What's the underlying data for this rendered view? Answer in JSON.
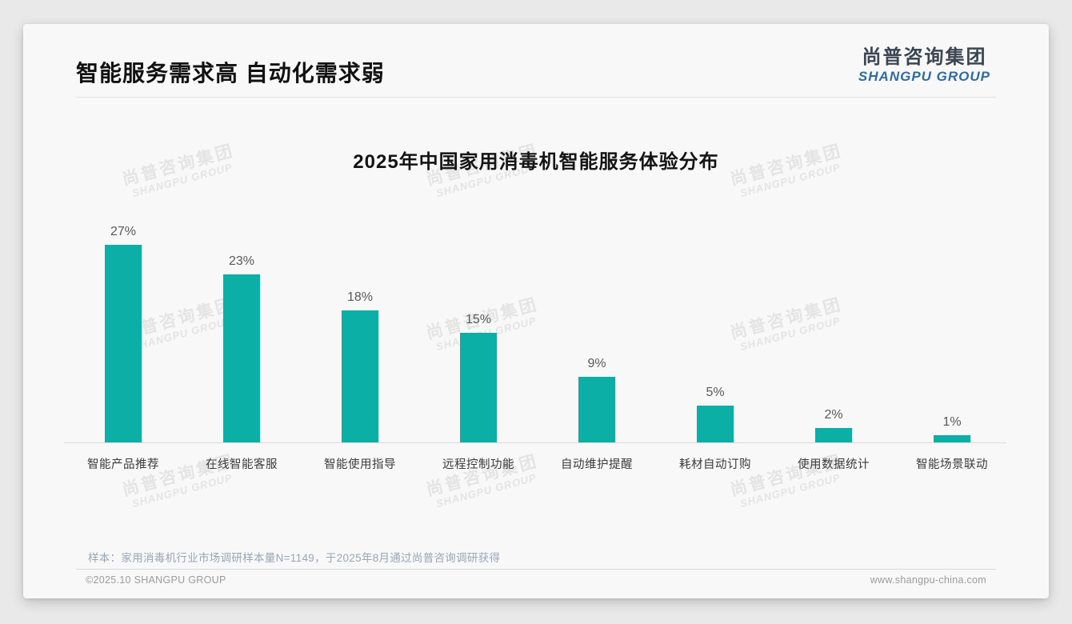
{
  "header": {
    "title": "智能服务需求高 自动化需求弱",
    "logo_cn": "尚普咨询集团",
    "logo_en": "SHANGPU GROUP"
  },
  "watermark": {
    "cn": "尚普咨询集团",
    "en": "SHANGPU GROUP"
  },
  "chart_data": {
    "type": "bar",
    "title": "2025年中国家用消毒机智能服务体验分布",
    "categories": [
      "智能产品推荐",
      "在线智能客服",
      "智能使用指导",
      "远程控制功能",
      "自动维护提醒",
      "耗材自动订购",
      "使用数据统计",
      "智能场景联动"
    ],
    "values": [
      27,
      23,
      18,
      15,
      9,
      5,
      2,
      1
    ],
    "data_labels": [
      "27%",
      "23%",
      "18%",
      "15%",
      "9%",
      "5%",
      "2%",
      "1%"
    ],
    "unit": "%",
    "xlabel": "",
    "ylabel": "",
    "ylim": [
      0,
      30
    ],
    "grid": "off",
    "legend": "none",
    "bar_color": "#0cafa6"
  },
  "footer": {
    "note": "样本：家用消毒机行业市场调研样本量N=1149，于2025年8月通过尚普咨询调研获得",
    "copyright": "©2025.10 SHANGPU GROUP",
    "website": "www.shangpu-china.com"
  },
  "colors": {
    "accent_teal": "#0cafa6",
    "brand_blue": "#2f6ba3",
    "brand_dark": "#3a4653",
    "note_gray_blue": "#98a6b6",
    "axis_line": "#d9d9d9"
  }
}
